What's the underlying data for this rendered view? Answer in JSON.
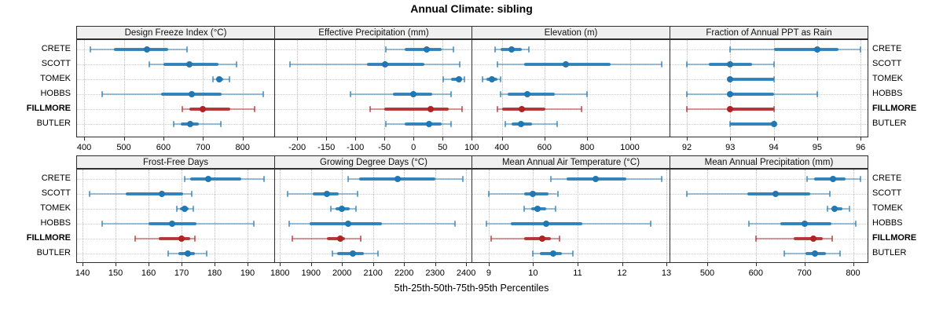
{
  "title": "Annual Climate: sibling",
  "caption": "5th-25th-50th-75th-95th Percentiles",
  "stations": [
    "CRETE",
    "SCOTT",
    "TOMEK",
    "HOBBS",
    "FILLMORE",
    "BUTLER"
  ],
  "highlight_station": "FILLMORE",
  "percentile_labels": [
    "5th",
    "25th",
    "50th",
    "75th",
    "95th"
  ],
  "colors": {
    "series": "#1f77b4",
    "highlight": "#b22222",
    "panel_header_bg": "#f0f0f0",
    "panel_border": "#2e2e2e",
    "gridline": "#bfbfbf"
  },
  "chart_data": [
    {
      "type": "dotplot-interval",
      "title": "Design Freeze Index (°C)",
      "row": 0,
      "col": 0,
      "xlim": [
        382,
        880
      ],
      "ticks": [
        400,
        500,
        600,
        700,
        800
      ],
      "grid": true,
      "series": [
        {
          "name": "CRETE",
          "percentiles": [
            415,
            475,
            558,
            612,
            660
          ]
        },
        {
          "name": "SCOTT",
          "percentiles": [
            565,
            600,
            665,
            740,
            785
          ]
        },
        {
          "name": "TOMEK",
          "percentiles": [
            725,
            733,
            741,
            752,
            767
          ]
        },
        {
          "name": "HOBBS",
          "percentiles": [
            445,
            595,
            672,
            748,
            853
          ]
        },
        {
          "name": "FILLMORE",
          "percentiles": [
            648,
            665,
            700,
            770,
            830
          ]
        },
        {
          "name": "BUTLER",
          "percentiles": [
            625,
            643,
            668,
            690,
            745
          ]
        }
      ]
    },
    {
      "type": "dotplot-interval",
      "title": "Effective Precipitation (mm)",
      "row": 0,
      "col": 1,
      "xlim": [
        -238,
        101
      ],
      "ticks": [
        -200,
        -150,
        -100,
        -50,
        0,
        50,
        100
      ],
      "grid": true,
      "series": [
        {
          "name": "CRETE",
          "percentiles": [
            -48,
            -15,
            23,
            48,
            69
          ]
        },
        {
          "name": "SCOTT",
          "percentiles": [
            -213,
            -80,
            -49,
            19,
            79
          ]
        },
        {
          "name": "TOMEK",
          "percentiles": [
            51,
            64,
            78,
            84,
            87
          ]
        },
        {
          "name": "HOBBS",
          "percentiles": [
            -108,
            -35,
            0,
            32,
            64
          ]
        },
        {
          "name": "FILLMORE",
          "percentiles": [
            -75,
            -50,
            29,
            60,
            84
          ]
        },
        {
          "name": "BUTLER",
          "percentiles": [
            -47,
            -15,
            27,
            48,
            64
          ]
        }
      ]
    },
    {
      "type": "dotplot-interval",
      "title": "Elevation (m)",
      "row": 0,
      "col": 2,
      "xlim": [
        262,
        1186
      ],
      "ticks": [
        400,
        600,
        800,
        1000
      ],
      "grid": true,
      "series": [
        {
          "name": "CRETE",
          "percentiles": [
            370,
            395,
            445,
            495,
            527
          ]
        },
        {
          "name": "SCOTT",
          "percentiles": [
            378,
            505,
            700,
            910,
            1148
          ]
        },
        {
          "name": "TOMEK",
          "percentiles": [
            311,
            327,
            354,
            380,
            393
          ]
        },
        {
          "name": "HOBBS",
          "percentiles": [
            393,
            427,
            518,
            650,
            800
          ]
        },
        {
          "name": "FILLMORE",
          "percentiles": [
            378,
            402,
            495,
            603,
            775
          ]
        },
        {
          "name": "BUTLER",
          "percentiles": [
            418,
            445,
            490,
            543,
            660
          ]
        }
      ]
    },
    {
      "type": "dotplot-interval",
      "title": "Fraction of Annual PPT as Rain",
      "row": 0,
      "col": 3,
      "xlim": [
        91.62,
        96.16
      ],
      "ticks": [
        92,
        93,
        94,
        95,
        96
      ],
      "grid": true,
      "series": [
        {
          "name": "CRETE",
          "percentiles": [
            93,
            94,
            95,
            95.5,
            96
          ]
        },
        {
          "name": "SCOTT",
          "percentiles": [
            92,
            92.5,
            93,
            93.5,
            94
          ]
        },
        {
          "name": "TOMEK",
          "percentiles": [
            93,
            93,
            93,
            94,
            94
          ]
        },
        {
          "name": "HOBBS",
          "percentiles": [
            92,
            93,
            93,
            94,
            95
          ]
        },
        {
          "name": "FILLMORE",
          "percentiles": [
            92,
            93,
            93,
            94,
            94
          ]
        },
        {
          "name": "BUTLER",
          "percentiles": [
            93,
            93,
            94,
            94,
            94
          ]
        }
      ]
    },
    {
      "type": "dotplot-interval",
      "title": "Frost-Free Days",
      "row": 1,
      "col": 0,
      "xlim": [
        138.3,
        198.1
      ],
      "ticks": [
        140,
        150,
        160,
        170,
        180,
        190
      ],
      "grid": true,
      "series": [
        {
          "name": "CRETE",
          "percentiles": [
            171,
            172.5,
            178,
            188,
            195
          ]
        },
        {
          "name": "SCOTT",
          "percentiles": [
            142,
            153,
            164,
            170.5,
            173
          ]
        },
        {
          "name": "TOMEK",
          "percentiles": [
            168.5,
            169.5,
            171,
            172,
            173.5
          ]
        },
        {
          "name": "HOBBS",
          "percentiles": [
            146,
            160,
            167,
            174.5,
            192
          ]
        },
        {
          "name": "FILLMORE",
          "percentiles": [
            156,
            163,
            170,
            172.5,
            174
          ]
        },
        {
          "name": "BUTLER",
          "percentiles": [
            166,
            169,
            172,
            174,
            177.5
          ]
        }
      ]
    },
    {
      "type": "dotplot-interval",
      "title": "Growing Degree Days (°C)",
      "row": 1,
      "col": 1,
      "xlim": [
        1784,
        2420
      ],
      "ticks": [
        1800,
        1900,
        2000,
        2100,
        2200,
        2300,
        2400
      ],
      "grid": true,
      "series": [
        {
          "name": "CRETE",
          "percentiles": [
            2020,
            2055,
            2180,
            2300,
            2390
          ]
        },
        {
          "name": "SCOTT",
          "percentiles": [
            1825,
            1905,
            1950,
            1990,
            2050
          ]
        },
        {
          "name": "TOMEK",
          "percentiles": [
            1965,
            1980,
            2000,
            2025,
            2045
          ]
        },
        {
          "name": "HOBBS",
          "percentiles": [
            1830,
            1895,
            2020,
            2130,
            2365
          ]
        },
        {
          "name": "FILLMORE",
          "percentiles": [
            1840,
            1950,
            1995,
            2010,
            2060
          ]
        },
        {
          "name": "BUTLER",
          "percentiles": [
            1970,
            1985,
            2035,
            2070,
            2115
          ]
        }
      ]
    },
    {
      "type": "dotplot-interval",
      "title": "Mean Annual Air Temperature (°C)",
      "row": 1,
      "col": 2,
      "xlim": [
        8.63,
        13.07
      ],
      "ticks": [
        9,
        10,
        11,
        12,
        13
      ],
      "grid": true,
      "series": [
        {
          "name": "CRETE",
          "percentiles": [
            10.4,
            10.75,
            11.4,
            12.1,
            12.9
          ]
        },
        {
          "name": "SCOTT",
          "percentiles": [
            9.0,
            9.8,
            10.0,
            10.35,
            10.55
          ]
        },
        {
          "name": "TOMEK",
          "percentiles": [
            9.8,
            9.95,
            10.1,
            10.3,
            10.5
          ]
        },
        {
          "name": "HOBBS",
          "percentiles": [
            8.95,
            9.5,
            10.3,
            11.1,
            12.65
          ]
        },
        {
          "name": "FILLMORE",
          "percentiles": [
            9.05,
            9.8,
            10.2,
            10.4,
            10.6
          ]
        },
        {
          "name": "BUTLER",
          "percentiles": [
            10.0,
            10.15,
            10.45,
            10.65,
            10.9
          ]
        }
      ]
    },
    {
      "type": "dotplot-interval",
      "title": "Mean Annual Precipitation (mm)",
      "row": 1,
      "col": 3,
      "xlim": [
        424,
        830
      ],
      "ticks": [
        500,
        600,
        700,
        800
      ],
      "grid": true,
      "series": [
        {
          "name": "CRETE",
          "percentiles": [
            705,
            720,
            758,
            785,
            815
          ]
        },
        {
          "name": "SCOTT",
          "percentiles": [
            458,
            582,
            640,
            712,
            753
          ]
        },
        {
          "name": "TOMEK",
          "percentiles": [
            748,
            755,
            762,
            778,
            792
          ]
        },
        {
          "name": "HOBBS",
          "percentiles": [
            585,
            650,
            700,
            755,
            805
          ]
        },
        {
          "name": "FILLMORE",
          "percentiles": [
            600,
            678,
            718,
            737,
            757
          ]
        },
        {
          "name": "BUTLER",
          "percentiles": [
            658,
            702,
            722,
            745,
            773
          ]
        }
      ]
    }
  ]
}
